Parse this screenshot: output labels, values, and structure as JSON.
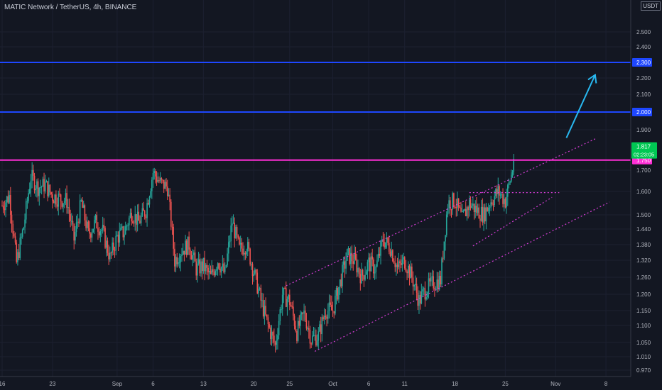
{
  "header": {
    "title": "MATIC Network / TetherUS, 4h, BINANCE",
    "currency": "USDT"
  },
  "chart_data": {
    "type": "candlestick",
    "symbol": "MATIC Network / TetherUS",
    "interval": "4h",
    "exchange": "BINANCE",
    "ylim": [
      0.95,
      2.62
    ],
    "y_ticks": [
      "0.970",
      "1.010",
      "1.050",
      "1.100",
      "1.150",
      "1.200",
      "1.260",
      "1.320",
      "1.380",
      "1.440",
      "1.500",
      "1.600",
      "1.700",
      "1.900",
      "2.100",
      "2.200",
      "2.400",
      "2.500"
    ],
    "y_tick_values": [
      0.97,
      1.01,
      1.05,
      1.1,
      1.15,
      1.2,
      1.26,
      1.32,
      1.38,
      1.44,
      1.5,
      1.6,
      1.7,
      1.9,
      2.1,
      2.2,
      2.4,
      2.5
    ],
    "x_ticks": [
      "16",
      "23",
      "Sep",
      "6",
      "13",
      "20",
      "25",
      "Oct",
      "6",
      "11",
      "18",
      "25",
      "Nov",
      "8"
    ],
    "x_tick_days": [
      0,
      7,
      16,
      21,
      28,
      35,
      40,
      46,
      51,
      56,
      63,
      70,
      77,
      84
    ],
    "date_origin": "2021-08-16",
    "last_price": {
      "value": "1.817",
      "value_num": 1.817,
      "timer": "02:23:05",
      "color": "#00c853"
    },
    "horizontal_lines": [
      {
        "value": 2.3,
        "label": "2.300",
        "color": "#1e47ff"
      },
      {
        "value": 2.0,
        "label": "2.000",
        "color": "#1e47ff"
      },
      {
        "value": 1.75,
        "label": "1.750",
        "color": "#ff2fd6"
      }
    ],
    "trend_lines": [
      {
        "color": "#d63dd6",
        "dashed": true,
        "from": [
          39.5,
          1.23
        ],
        "to": [
          82.5,
          1.855
        ]
      },
      {
        "color": "#d63dd6",
        "dashed": true,
        "from": [
          43.5,
          1.025
        ],
        "to": [
          84.5,
          1.555
        ]
      },
      {
        "color": "#d63dd6",
        "dashed": true,
        "from": [
          65.5,
          1.375
        ],
        "to": [
          76.5,
          1.575
        ]
      },
      {
        "color": "#d63dd6",
        "dashed": true,
        "from": [
          65.0,
          1.595
        ],
        "to": [
          77.5,
          1.595
        ]
      }
    ],
    "arrow": {
      "color": "#28b8f0",
      "from": [
        78.5,
        1.86
      ],
      "to": [
        82.5,
        2.22
      ]
    },
    "candle_colors": {
      "up": "#26a69a",
      "down": "#ef5350"
    },
    "anchors": [
      [
        0,
        1.54
      ],
      [
        1,
        1.58
      ],
      [
        2,
        1.31
      ],
      [
        3,
        1.45
      ],
      [
        4,
        1.67
      ],
      [
        5,
        1.62
      ],
      [
        6,
        1.63
      ],
      [
        7,
        1.58
      ],
      [
        8,
        1.57
      ],
      [
        9,
        1.56
      ],
      [
        10,
        1.4
      ],
      [
        11,
        1.55
      ],
      [
        12,
        1.42
      ],
      [
        13,
        1.47
      ],
      [
        14,
        1.43
      ],
      [
        15,
        1.33
      ],
      [
        16,
        1.41
      ],
      [
        17,
        1.43
      ],
      [
        18,
        1.51
      ],
      [
        19,
        1.47
      ],
      [
        20,
        1.52
      ],
      [
        21,
        1.69
      ],
      [
        22,
        1.64
      ],
      [
        23,
        1.62
      ],
      [
        24,
        1.32
      ],
      [
        25,
        1.36
      ],
      [
        26,
        1.38
      ],
      [
        27,
        1.29
      ],
      [
        28,
        1.3
      ],
      [
        29,
        1.26
      ],
      [
        30,
        1.32
      ],
      [
        31,
        1.27
      ],
      [
        32,
        1.47
      ],
      [
        33,
        1.36
      ],
      [
        34,
        1.38
      ],
      [
        35,
        1.28
      ],
      [
        36,
        1.18
      ],
      [
        37,
        1.1
      ],
      [
        38,
        1.04
      ],
      [
        39,
        1.2
      ],
      [
        40,
        1.18
      ],
      [
        41,
        1.08
      ],
      [
        42,
        1.14
      ],
      [
        43,
        1.06
      ],
      [
        44,
        1.07
      ],
      [
        45,
        1.15
      ],
      [
        46,
        1.15
      ],
      [
        47,
        1.24
      ],
      [
        48,
        1.34
      ],
      [
        49,
        1.32
      ],
      [
        50,
        1.26
      ],
      [
        51,
        1.31
      ],
      [
        52,
        1.29
      ],
      [
        53,
        1.4
      ],
      [
        54,
        1.37
      ],
      [
        55,
        1.29
      ],
      [
        56,
        1.32
      ],
      [
        57,
        1.26
      ],
      [
        58,
        1.18
      ],
      [
        59,
        1.22
      ],
      [
        60,
        1.24
      ],
      [
        61,
        1.25
      ],
      [
        62,
        1.55
      ],
      [
        63,
        1.56
      ],
      [
        64,
        1.48
      ],
      [
        65,
        1.55
      ],
      [
        66,
        1.52
      ],
      [
        67,
        1.5
      ],
      [
        68,
        1.56
      ],
      [
        69,
        1.6
      ],
      [
        70,
        1.56
      ],
      [
        71,
        1.7
      ],
      [
        71.3,
        1.817
      ]
    ]
  }
}
